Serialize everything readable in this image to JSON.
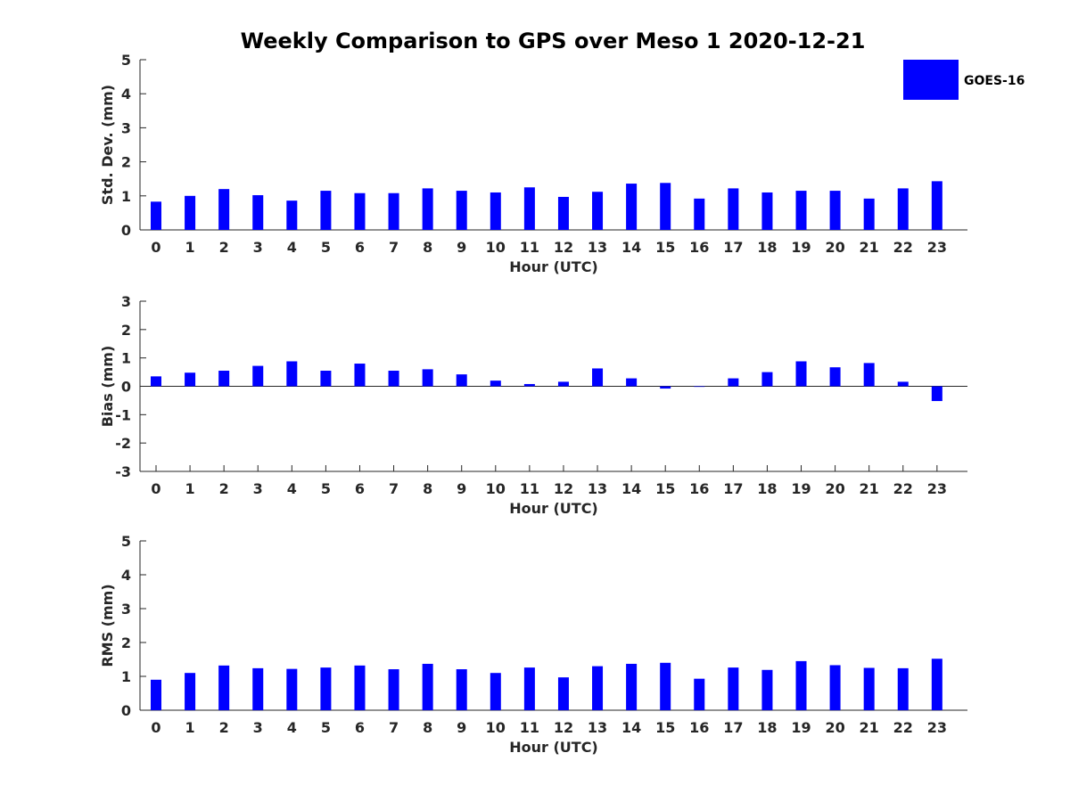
{
  "chart_data": {
    "type": "bar",
    "title": "Weekly Comparison to GPS over Meso 1 2020-12-21",
    "legend": {
      "position": "top-right",
      "entries": [
        {
          "label": "GOES-16",
          "color": "#0000ff"
        }
      ]
    },
    "categories": [
      "0",
      "1",
      "2",
      "3",
      "4",
      "5",
      "6",
      "7",
      "8",
      "9",
      "10",
      "11",
      "12",
      "13",
      "14",
      "15",
      "16",
      "17",
      "18",
      "19",
      "20",
      "21",
      "22",
      "23"
    ],
    "subplots": [
      {
        "id": "std",
        "ylabel": "Std. Dev. (mm)",
        "xlabel": "Hour (UTC)",
        "ylim": [
          0,
          5
        ],
        "yticks": [
          "0",
          "1",
          "2",
          "3",
          "4",
          "5"
        ],
        "series": [
          {
            "name": "GOES-16",
            "color": "#0000ff",
            "values": [
              0.83,
              1.0,
              1.2,
              1.02,
              0.86,
              1.15,
              1.08,
              1.08,
              1.22,
              1.15,
              1.1,
              1.25,
              0.97,
              1.12,
              1.36,
              1.38,
              0.92,
              1.22,
              1.1,
              1.15,
              1.15,
              0.92,
              1.22,
              1.43
            ]
          }
        ]
      },
      {
        "id": "bias",
        "ylabel": "Bias (mm)",
        "xlabel": "Hour (UTC)",
        "ylim": [
          -3,
          3
        ],
        "yticks": [
          "-3",
          "-2",
          "-1",
          "0",
          "1",
          "2",
          "3"
        ],
        "zero_line": true,
        "series": [
          {
            "name": "GOES-16",
            "color": "#0000ff",
            "values": [
              0.35,
              0.48,
              0.55,
              0.72,
              0.88,
              0.55,
              0.8,
              0.55,
              0.6,
              0.42,
              0.2,
              0.08,
              0.16,
              0.63,
              0.28,
              -0.08,
              -0.02,
              0.28,
              0.5,
              0.88,
              0.67,
              0.82,
              0.16,
              -0.52
            ]
          }
        ]
      },
      {
        "id": "rms",
        "ylabel": "RMS (mm)",
        "xlabel": "Hour (UTC)",
        "ylim": [
          0,
          5
        ],
        "yticks": [
          "0",
          "1",
          "2",
          "3",
          "4",
          "5"
        ],
        "series": [
          {
            "name": "GOES-16",
            "color": "#0000ff",
            "values": [
              0.9,
              1.1,
              1.32,
              1.24,
              1.22,
              1.26,
              1.32,
              1.21,
              1.37,
              1.21,
              1.1,
              1.26,
              0.97,
              1.3,
              1.37,
              1.4,
              0.93,
              1.26,
              1.19,
              1.45,
              1.33,
              1.25,
              1.24,
              1.52
            ]
          }
        ]
      }
    ]
  }
}
